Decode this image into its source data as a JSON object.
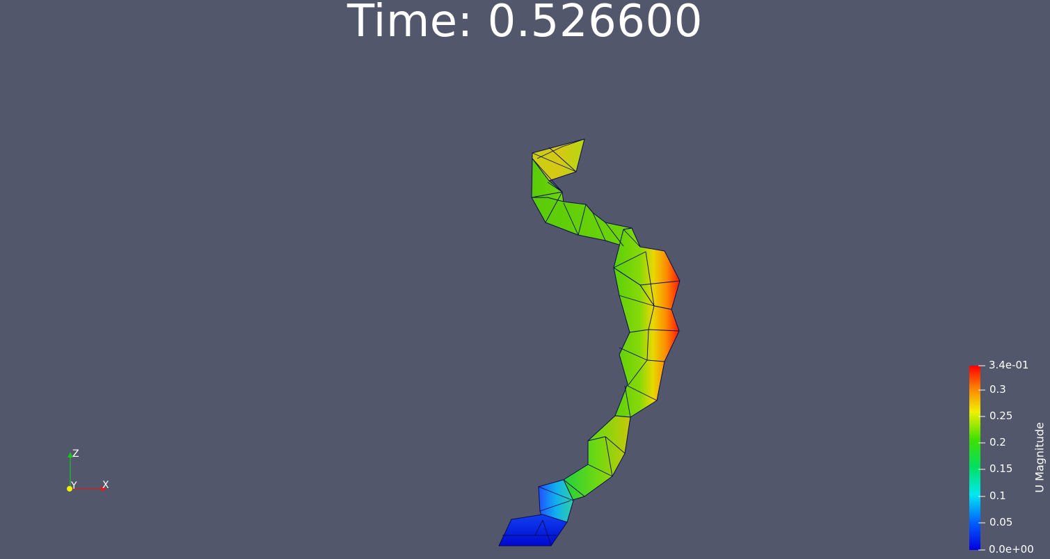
{
  "title": "Time: 0.526600",
  "colorbar": {
    "title": "U Magnitude",
    "ticks": [
      "3.4e-01",
      "0.3",
      "0.25",
      "0.2",
      "0.15",
      "0.1",
      "0.05",
      "0.0e+00"
    ],
    "range": [
      0.0,
      0.34
    ],
    "colormap": "rainbow (blue-cyan-green-yellow-red)"
  },
  "orientation_axes": {
    "x_label": "X",
    "y_label": "Y",
    "z_label": "Z",
    "x_color": "#d62020",
    "y_color": "#f0f000",
    "z_color": "#20c020"
  },
  "colors": {
    "background": "#52576c",
    "edge": "#0a0a50",
    "text": "#ffffff"
  }
}
